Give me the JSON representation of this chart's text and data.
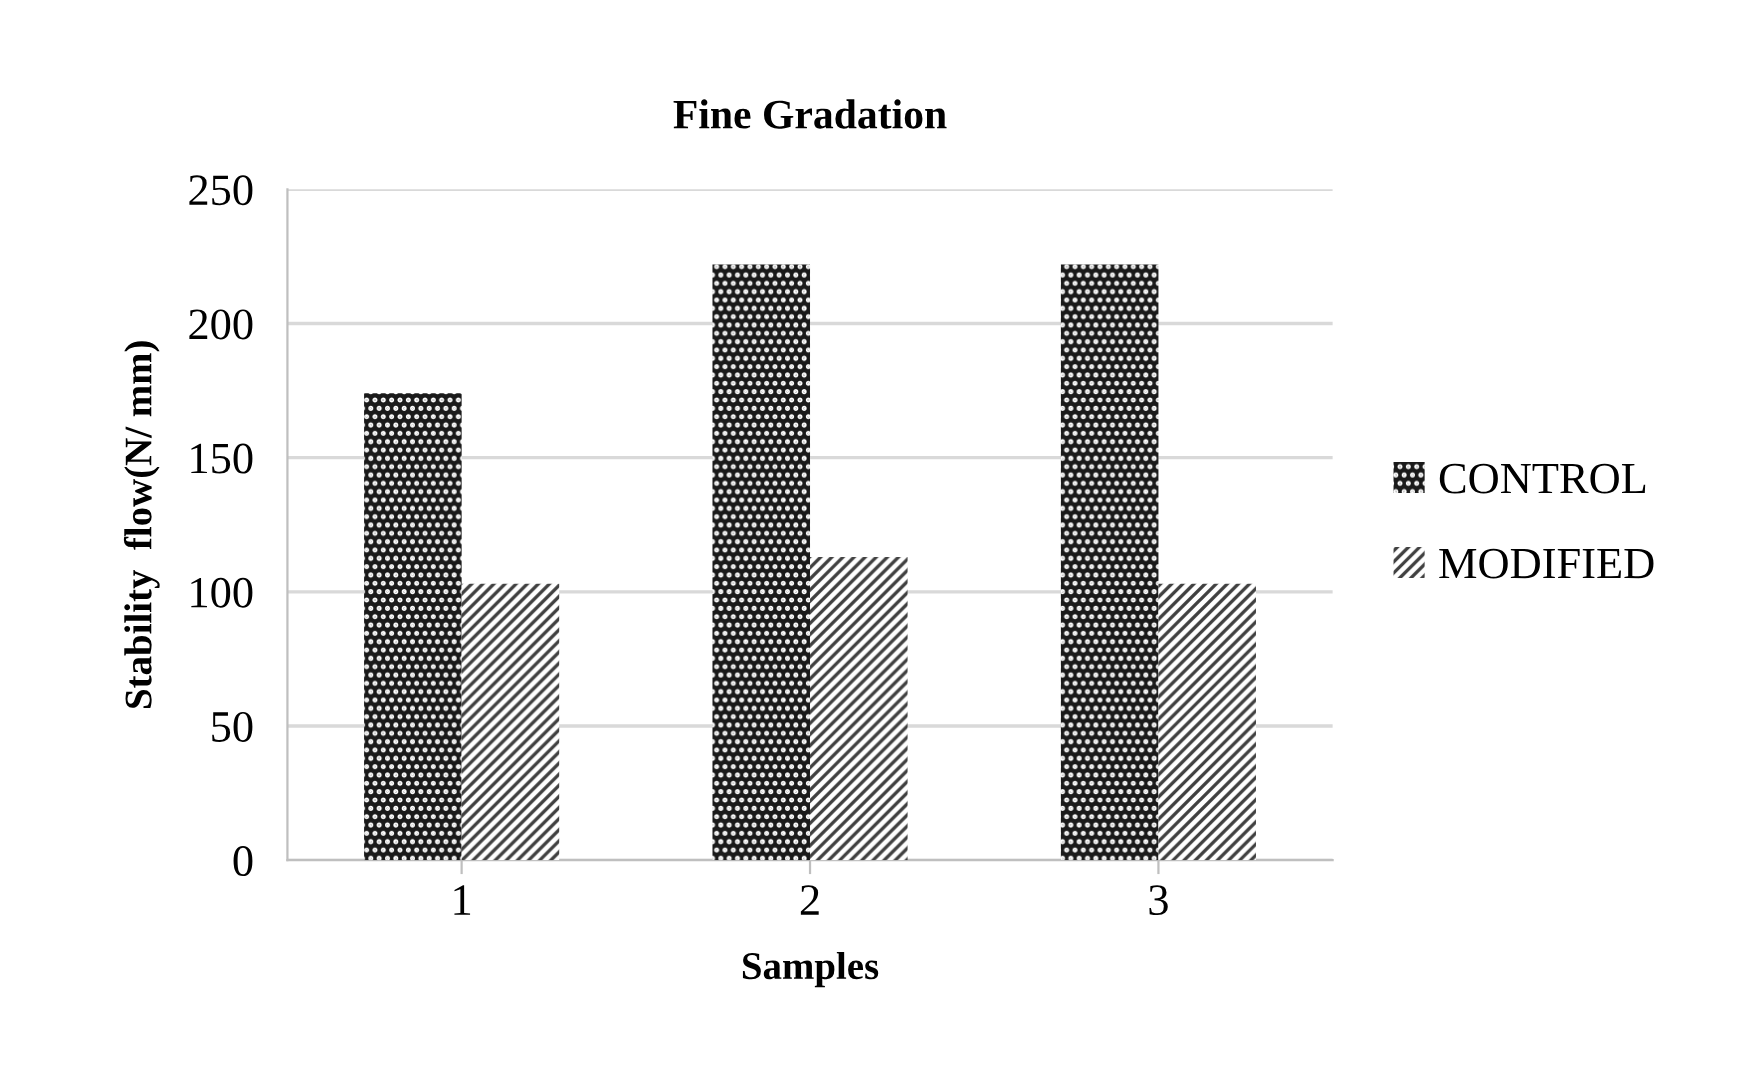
{
  "chart_data": {
    "type": "bar",
    "title": "Fine Gradation",
    "xlabel": "Samples",
    "ylabel": "Stability  flow(N/ mm)",
    "categories": [
      "1",
      "2",
      "3"
    ],
    "series": [
      {
        "name": "CONTROL",
        "color": "#1a1a1a",
        "values": [
          174,
          222,
          222
        ]
      },
      {
        "name": "MODIFIED",
        "color": "#404040",
        "values": [
          103,
          113,
          103
        ]
      }
    ],
    "ylim": [
      0,
      250
    ],
    "yticks": [
      0,
      50,
      100,
      150,
      200,
      250
    ],
    "grid": "y",
    "legend": "right"
  }
}
